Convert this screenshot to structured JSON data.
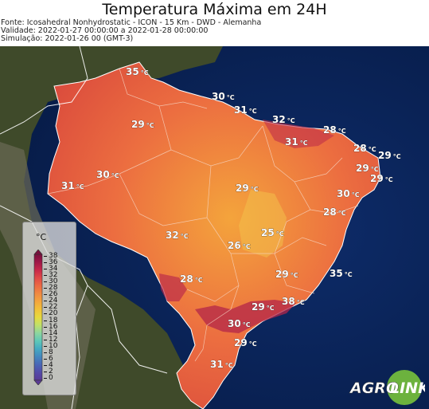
{
  "header": {
    "title": "Temperatura Máxima em 24H",
    "source": "Fonte: Icosahedral Nonhydrostatic - ICON - 15 Km - DWD - Alemanha",
    "validity": "Validade: 2022-01-27 00:00:00 a 2022-01-28 00:00:00",
    "simulation": "Simulação: 2022-01-26 00 (GMT-3)"
  },
  "legend": {
    "unit": "°C",
    "ticks": [
      "38",
      "36",
      "34",
      "32",
      "30",
      "28",
      "26",
      "24",
      "22",
      "20",
      "18",
      "16",
      "14",
      "12",
      "10",
      "8",
      "6",
      "4",
      "2",
      "0"
    ],
    "colors": [
      "#7a0f3d",
      "#a01848",
      "#c8284a",
      "#e04a48",
      "#ec6a44",
      "#f08a42",
      "#f3a63e",
      "#f1c23a",
      "#e7da3f",
      "#bfe06a",
      "#8dd6a0",
      "#5ec8b8",
      "#45aac2",
      "#4488bf",
      "#4a66b6",
      "#544aa8",
      "#5a3a96"
    ]
  },
  "labels": [
    {
      "id": "amapa-north",
      "text": "35",
      "unit": "°C"
    },
    {
      "id": "para-north",
      "text": "30",
      "unit": "°C"
    },
    {
      "id": "belem",
      "text": "31",
      "unit": "°C"
    },
    {
      "id": "maranhao",
      "text": "32",
      "unit": "°C"
    },
    {
      "id": "ceara",
      "text": "28",
      "unit": "°C"
    },
    {
      "id": "piaui",
      "text": "31",
      "unit": "°C"
    },
    {
      "id": "rn",
      "text": "28",
      "unit": "°C"
    },
    {
      "id": "east-coast-1",
      "text": "29",
      "unit": "°C"
    },
    {
      "id": "pb",
      "text": "29",
      "unit": "°C"
    },
    {
      "id": "pe",
      "text": "29",
      "unit": "°C"
    },
    {
      "id": "amazonas-north",
      "text": "29",
      "unit": "°C"
    },
    {
      "id": "amazonas-center",
      "text": "30",
      "unit": "°C"
    },
    {
      "id": "acre",
      "text": "31",
      "unit": "°C"
    },
    {
      "id": "tocantins",
      "text": "29",
      "unit": "°C"
    },
    {
      "id": "bahia-north",
      "text": "30",
      "unit": "°C"
    },
    {
      "id": "bahia-center",
      "text": "28",
      "unit": "°C"
    },
    {
      "id": "mato-grosso",
      "text": "32",
      "unit": "°C"
    },
    {
      "id": "goias",
      "text": "25",
      "unit": "°C"
    },
    {
      "id": "mg-west",
      "text": "26",
      "unit": "°C"
    },
    {
      "id": "ms",
      "text": "28",
      "unit": "°C"
    },
    {
      "id": "mg-east",
      "text": "29",
      "unit": "°C"
    },
    {
      "id": "es",
      "text": "35",
      "unit": "°C"
    },
    {
      "id": "rj",
      "text": "38",
      "unit": "°C"
    },
    {
      "id": "sp-north",
      "text": "29",
      "unit": "°C"
    },
    {
      "id": "sp-south",
      "text": "30",
      "unit": "°C"
    },
    {
      "id": "pr",
      "text": "29",
      "unit": "°C"
    },
    {
      "id": "rs",
      "text": "31",
      "unit": "°C"
    }
  ],
  "logo": {
    "text_left": "AGRO",
    "text_right": "LINK"
  }
}
